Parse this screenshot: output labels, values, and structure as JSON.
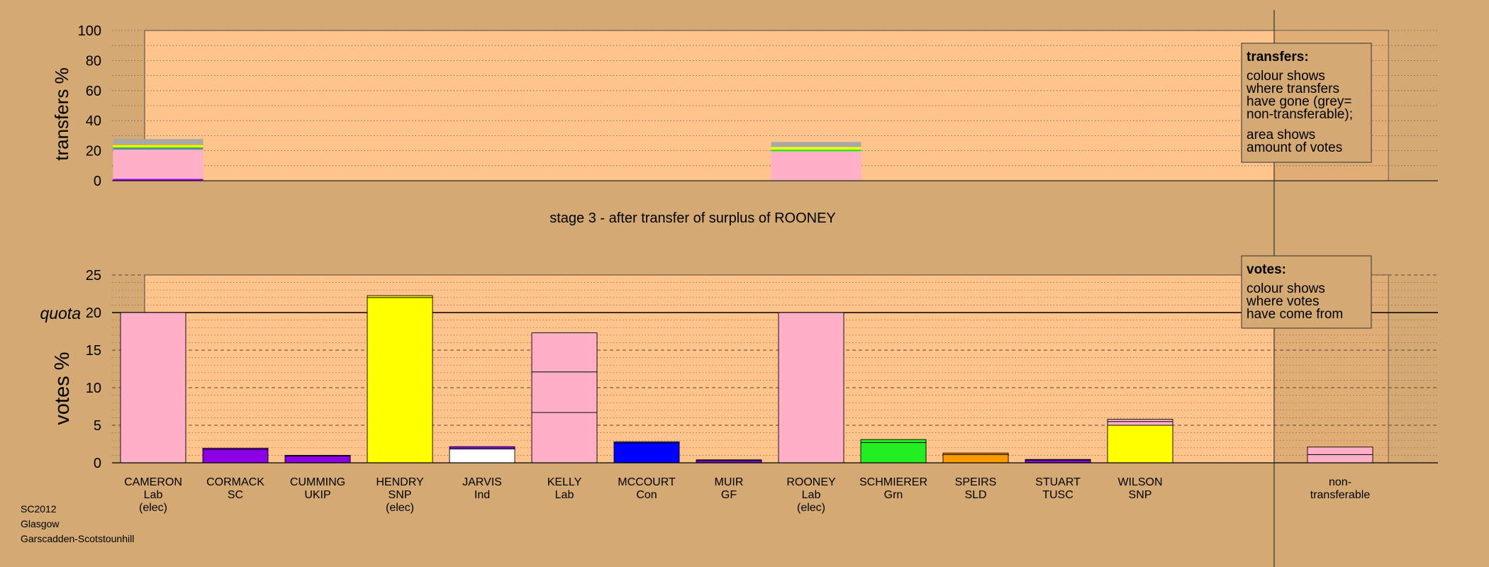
{
  "colors": {
    "background": "#d4a973",
    "plot_background": "#fec48b",
    "right_panel": "#c89a68",
    "Lab": "#ffb0c8",
    "SC": "#8c00e6",
    "UKIP": "#8c00e6",
    "SNP": "#ffff00",
    "Ind": "#ffffff",
    "Con": "#0000ff",
    "GF": "#8c00e6",
    "Grn": "#22ee22",
    "SLD": "#ff9a00",
    "TUSC": "#8c00e6",
    "nontransferable": "#a8a8a8"
  },
  "chart_data": [
    {
      "type": "bar",
      "role": "transfers",
      "ylabel": "transfers %",
      "ylim": [
        0,
        100
      ],
      "yticks": [
        "0",
        "20",
        "40",
        "60",
        "80",
        "100"
      ],
      "grid": "dotted",
      "categories": [
        "CAMERON",
        "CORMACK",
        "CUMMING",
        "HENDRY",
        "JARVIS",
        "KELLY",
        "MCCOURT",
        "MUIR",
        "ROONEY",
        "SCHMIERER",
        "SPEIRS",
        "STUART",
        "WILSON"
      ],
      "stacks": [
        {
          "category": "CAMERON",
          "segments": [
            {
              "party": "SC",
              "value": 1.2
            },
            {
              "party": "Lab",
              "value": 19.8
            },
            {
              "party": "Con",
              "value": 0.4
            },
            {
              "party": "Grn",
              "value": 1.0
            },
            {
              "party": "SNP",
              "value": 1.3
            },
            {
              "party": "SLD",
              "value": 0.4
            },
            {
              "party": "nontransferable",
              "value": 3.6
            }
          ]
        },
        {
          "category": "ROONEY",
          "segments": [
            {
              "party": "Lab",
              "value": 19.6
            },
            {
              "party": "Grn",
              "value": 1.2
            },
            {
              "party": "SNP",
              "value": 1.6
            },
            {
              "party": "nontransferable",
              "value": 3.4
            }
          ]
        }
      ],
      "legend": {
        "title": "transfers:",
        "lines": [
          "colour shows",
          "where transfers",
          "have gone (grey=",
          "non-transferable);",
          "area shows",
          "amount of votes"
        ]
      }
    },
    {
      "type": "bar",
      "role": "votes",
      "title": "stage 3 - after transfer of surplus of ROONEY",
      "ylabel": "votes %",
      "ylim": [
        0,
        25
      ],
      "yticks": [
        "0",
        "5",
        "10",
        "15",
        "20",
        "25"
      ],
      "quota": 20,
      "quota_label": "quota",
      "categories": [
        {
          "name": "CAMERON",
          "party": "Lab",
          "note": "(elec)"
        },
        {
          "name": "CORMACK",
          "party": "SC",
          "note": ""
        },
        {
          "name": "CUMMING",
          "party": "UKIP",
          "note": ""
        },
        {
          "name": "HENDRY",
          "party": "SNP",
          "note": "(elec)"
        },
        {
          "name": "JARVIS",
          "party": "Ind",
          "note": ""
        },
        {
          "name": "KELLY",
          "party": "Lab",
          "note": ""
        },
        {
          "name": "MCCOURT",
          "party": "Con",
          "note": ""
        },
        {
          "name": "MUIR",
          "party": "GF",
          "note": ""
        },
        {
          "name": "ROONEY",
          "party": "Lab",
          "note": "(elec)"
        },
        {
          "name": "SCHMIERER",
          "party": "Grn",
          "note": ""
        },
        {
          "name": "SPEIRS",
          "party": "SLD",
          "note": ""
        },
        {
          "name": "STUART",
          "party": "TUSC",
          "note": ""
        },
        {
          "name": "WILSON",
          "party": "SNP",
          "note": ""
        },
        {
          "name": "non-",
          "party": "transferable",
          "note": ""
        }
      ],
      "stacks": [
        [
          {
            "party": "Lab",
            "value": 20.0
          }
        ],
        [
          {
            "party": "SC",
            "value": 1.75
          },
          {
            "party": "SC",
            "value": 0.2
          }
        ],
        [
          {
            "party": "UKIP",
            "value": 0.9
          },
          {
            "party": "UKIP",
            "value": 0.1
          }
        ],
        [
          {
            "party": "SNP",
            "value": 22.0
          },
          {
            "party": "SNP",
            "value": 0.25
          }
        ],
        [
          {
            "party": "Ind",
            "value": 1.85
          },
          {
            "party": "SC",
            "value": 0.3
          }
        ],
        [
          {
            "party": "Lab",
            "value": 6.7
          },
          {
            "party": "Lab",
            "value": 5.4
          },
          {
            "party": "Lab",
            "value": 5.2
          }
        ],
        [
          {
            "party": "Con",
            "value": 2.6
          },
          {
            "party": "Con",
            "value": 0.2
          }
        ],
        [
          {
            "party": "GF",
            "value": 0.3
          },
          {
            "party": "GF",
            "value": 0.1
          }
        ],
        [
          {
            "party": "Lab",
            "value": 20.0
          }
        ],
        [
          {
            "party": "Grn",
            "value": 2.7
          },
          {
            "party": "Grn",
            "value": 0.4
          }
        ],
        [
          {
            "party": "SLD",
            "value": 1.1
          },
          {
            "party": "SLD",
            "value": 0.2
          }
        ],
        [
          {
            "party": "TUSC",
            "value": 0.35
          },
          {
            "party": "TUSC",
            "value": 0.1
          }
        ],
        [
          {
            "party": "SNP",
            "value": 5.0
          },
          {
            "party": "Lab",
            "value": 0.5
          },
          {
            "party": "Lab",
            "value": 0.3
          }
        ],
        [
          {
            "party": "Lab",
            "value": 1.1
          },
          {
            "party": "Lab",
            "value": 1.0
          }
        ]
      ],
      "legend": {
        "title": "votes:",
        "lines": [
          "colour shows",
          "where votes",
          "have come from"
        ]
      }
    }
  ],
  "footer": {
    "lines": [
      "SC2012",
      "Glasgow",
      "Garscadden-Scotstounhill"
    ]
  }
}
